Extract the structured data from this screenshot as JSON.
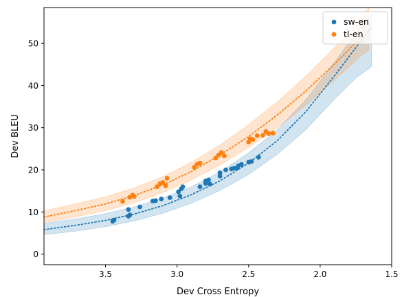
{
  "chart_data": {
    "type": "scatter",
    "title": "",
    "xlabel": "Dev Cross Entropy",
    "ylabel": "Dev BLEU",
    "xlim": [
      3.93,
      1.5
    ],
    "ylim": [
      -2.5,
      58.5
    ],
    "x_inverted": true,
    "xticks": [
      3.5,
      3.0,
      2.5,
      2.0,
      1.5
    ],
    "xtick_labels": [
      "3.5",
      "3.0",
      "2.5",
      "2.0",
      "1.5"
    ],
    "yticks": [
      0,
      10,
      20,
      30,
      40,
      50
    ],
    "ytick_labels": [
      "0",
      "10",
      "20",
      "30",
      "40",
      "50"
    ],
    "grid": false,
    "legend_position": "top-right",
    "series": [
      {
        "name": "sw-en",
        "color": "#1f77b4",
        "points": [
          [
            3.45,
            7.8
          ],
          [
            3.44,
            8.1
          ],
          [
            3.34,
            9.0
          ],
          [
            3.33,
            9.3
          ],
          [
            3.34,
            10.6
          ],
          [
            3.26,
            11.2
          ],
          [
            3.17,
            12.6
          ],
          [
            3.15,
            12.7
          ],
          [
            3.11,
            13.1
          ],
          [
            3.05,
            13.4
          ],
          [
            2.98,
            13.8
          ],
          [
            2.99,
            14.8
          ],
          [
            2.97,
            15.5
          ],
          [
            2.96,
            16.0
          ],
          [
            2.84,
            16.0
          ],
          [
            2.8,
            16.8
          ],
          [
            2.8,
            17.4
          ],
          [
            2.78,
            17.6
          ],
          [
            2.77,
            16.6
          ],
          [
            2.7,
            18.5
          ],
          [
            2.7,
            19.3
          ],
          [
            2.66,
            20.0
          ],
          [
            2.62,
            20.2
          ],
          [
            2.6,
            20.4
          ],
          [
            2.58,
            20.5
          ],
          [
            2.57,
            21.0
          ],
          [
            2.55,
            21.3
          ],
          [
            2.5,
            21.8
          ],
          [
            2.48,
            22.0
          ],
          [
            2.43,
            23.0
          ]
        ],
        "fit": [
          [
            3.93,
            5.8
          ],
          [
            3.7,
            6.9
          ],
          [
            3.5,
            8.0
          ],
          [
            3.3,
            9.5
          ],
          [
            3.1,
            11.5
          ],
          [
            2.9,
            14.1
          ],
          [
            2.7,
            17.4
          ],
          [
            2.5,
            21.6
          ],
          [
            2.3,
            26.9
          ],
          [
            2.1,
            33.8
          ],
          [
            1.9,
            42.3
          ],
          [
            1.75,
            49.0
          ],
          [
            1.65,
            53.5
          ]
        ],
        "band_upper": [
          [
            3.93,
            7.3
          ],
          [
            3.7,
            8.4
          ],
          [
            3.5,
            9.6
          ],
          [
            3.3,
            11.2
          ],
          [
            3.1,
            13.3
          ],
          [
            2.9,
            16.0
          ],
          [
            2.7,
            19.5
          ],
          [
            2.5,
            24.0
          ],
          [
            2.3,
            29.5
          ],
          [
            2.1,
            36.6
          ],
          [
            1.9,
            45.5
          ],
          [
            1.75,
            52.5
          ],
          [
            1.64,
            57.0
          ]
        ],
        "band_lower": [
          [
            3.93,
            4.6
          ],
          [
            3.7,
            5.5
          ],
          [
            3.5,
            6.5
          ],
          [
            3.3,
            7.9
          ],
          [
            3.1,
            9.7
          ],
          [
            2.9,
            12.1
          ],
          [
            2.7,
            15.1
          ],
          [
            2.5,
            18.9
          ],
          [
            2.3,
            23.7
          ],
          [
            2.1,
            29.5
          ],
          [
            1.9,
            36.8
          ],
          [
            1.75,
            41.8
          ],
          [
            1.64,
            44.5
          ]
        ]
      },
      {
        "name": "tl-en",
        "color": "#ff7f0e",
        "points": [
          [
            3.38,
            12.5
          ],
          [
            3.33,
            13.5
          ],
          [
            3.31,
            14.0
          ],
          [
            3.3,
            13.7
          ],
          [
            3.14,
            16.0
          ],
          [
            3.12,
            16.7
          ],
          [
            3.1,
            17.0
          ],
          [
            3.08,
            16.2
          ],
          [
            3.07,
            18.0
          ],
          [
            2.88,
            20.6
          ],
          [
            2.86,
            21.3
          ],
          [
            2.84,
            21.6
          ],
          [
            2.73,
            22.8
          ],
          [
            2.71,
            23.5
          ],
          [
            2.69,
            24.1
          ],
          [
            2.67,
            23.3
          ],
          [
            2.5,
            26.6
          ],
          [
            2.49,
            27.4
          ],
          [
            2.47,
            27.2
          ],
          [
            2.44,
            28.1
          ],
          [
            2.4,
            28.2
          ],
          [
            2.38,
            29.1
          ],
          [
            2.36,
            28.6
          ],
          [
            2.33,
            28.7
          ]
        ],
        "fit": [
          [
            3.93,
            8.8
          ],
          [
            3.7,
            10.4
          ],
          [
            3.5,
            11.9
          ],
          [
            3.3,
            13.9
          ],
          [
            3.1,
            16.4
          ],
          [
            2.9,
            19.6
          ],
          [
            2.7,
            23.5
          ],
          [
            2.5,
            27.9
          ],
          [
            2.3,
            33.0
          ],
          [
            2.1,
            38.7
          ],
          [
            1.9,
            45.1
          ],
          [
            1.75,
            50.2
          ],
          [
            1.7,
            52.3
          ]
        ],
        "band_upper": [
          [
            3.93,
            10.3
          ],
          [
            3.7,
            12.0
          ],
          [
            3.5,
            13.6
          ],
          [
            3.3,
            15.7
          ],
          [
            3.1,
            18.4
          ],
          [
            2.9,
            21.8
          ],
          [
            2.7,
            25.9
          ],
          [
            2.5,
            30.7
          ],
          [
            2.3,
            36.1
          ],
          [
            2.1,
            42.2
          ],
          [
            1.9,
            49.0
          ],
          [
            1.75,
            54.5
          ],
          [
            1.66,
            58.5
          ]
        ],
        "band_lower": [
          [
            3.93,
            7.5
          ],
          [
            3.7,
            8.9
          ],
          [
            3.5,
            10.3
          ],
          [
            3.3,
            12.2
          ],
          [
            3.1,
            14.6
          ],
          [
            2.9,
            17.6
          ],
          [
            2.7,
            21.2
          ],
          [
            2.5,
            25.3
          ],
          [
            2.3,
            30.0
          ],
          [
            2.1,
            35.3
          ],
          [
            1.9,
            41.3
          ],
          [
            1.75,
            46.0
          ],
          [
            1.66,
            48.5
          ]
        ]
      }
    ]
  }
}
